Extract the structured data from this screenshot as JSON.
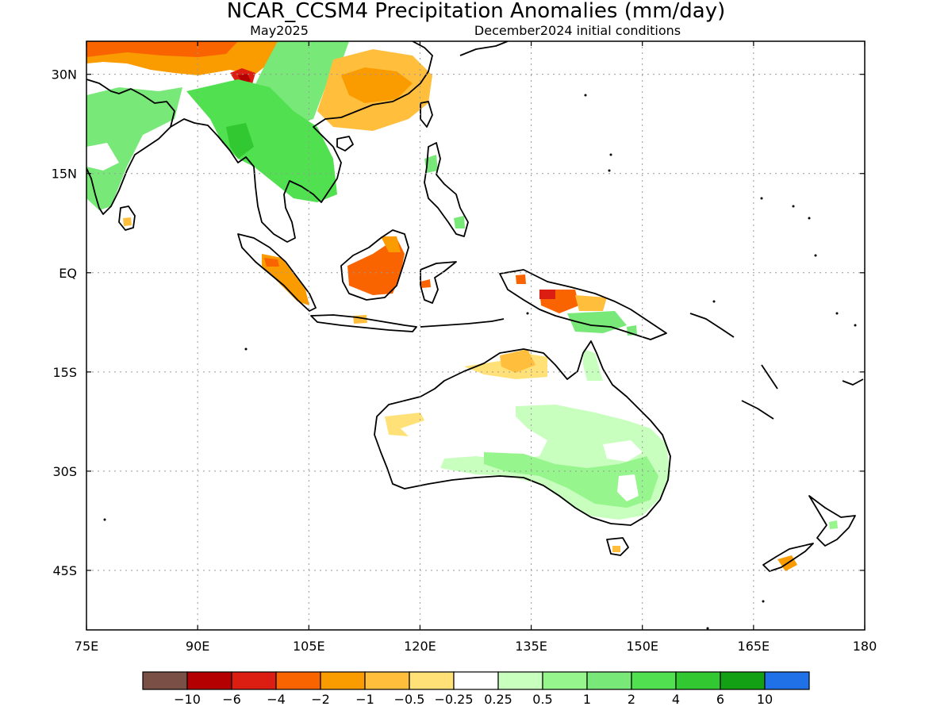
{
  "header": {
    "title": "NCAR_CCSM4 Precipitation Anomalies (mm/day)",
    "subtitle_left": "May2025",
    "subtitle_right": "December2024 initial conditions"
  },
  "map": {
    "lon_range": [
      75,
      180
    ],
    "lat_range": [
      -54,
      35
    ],
    "lon_ticks": [
      {
        "value": 75,
        "label": "75E"
      },
      {
        "value": 90,
        "label": "90E"
      },
      {
        "value": 105,
        "label": "105E"
      },
      {
        "value": 120,
        "label": "120E"
      },
      {
        "value": 135,
        "label": "135E"
      },
      {
        "value": 150,
        "label": "150E"
      },
      {
        "value": 165,
        "label": "165E"
      },
      {
        "value": 180,
        "label": "180"
      }
    ],
    "lat_ticks": [
      {
        "value": 30,
        "label": "30N"
      },
      {
        "value": 15,
        "label": "15N"
      },
      {
        "value": 0,
        "label": "EQ"
      },
      {
        "value": -15,
        "label": "15S"
      },
      {
        "value": -30,
        "label": "30S"
      },
      {
        "value": -45,
        "label": "45S"
      }
    ],
    "grid": "dotted"
  },
  "colorbar": {
    "colors": [
      "#7a5046",
      "#b40000",
      "#dc1e12",
      "#fa6400",
      "#fa9b00",
      "#ffbe3c",
      "#ffe178",
      "#ffffff",
      "#c8ffbe",
      "#96f58c",
      "#78e878",
      "#50e050",
      "#32c832",
      "#14a014",
      "#2070e8"
    ],
    "labels": [
      "−10",
      "−6",
      "−4",
      "−2",
      "−1",
      "−0.5",
      "−0.25",
      "0.25",
      "0.5",
      "1",
      "2",
      "4",
      "6",
      "10"
    ]
  },
  "chart_data": {
    "type": "heatmap",
    "title": "NCAR_CCSM4 Precipitation Anomalies (mm/day)",
    "xlim": [
      75,
      180
    ],
    "ylim": [
      -54,
      35
    ],
    "anomaly_regions": [
      {
        "lon": [
          75,
          98
        ],
        "lat": [
          25,
          35
        ],
        "anomaly_mm_day": -2
      },
      {
        "lon": [
          94,
          98
        ],
        "lat": [
          27,
          30
        ],
        "anomaly_mm_day": -6
      },
      {
        "lon": [
          95,
          104
        ],
        "lat": [
          25,
          35
        ],
        "anomaly_mm_day": 1
      },
      {
        "lon": [
          75,
          90
        ],
        "lat": [
          10,
          25
        ],
        "anomaly_mm_day": 1
      },
      {
        "lon": [
          93,
          110
        ],
        "lat": [
          10,
          25
        ],
        "anomaly_mm_day": 2
      },
      {
        "lon": [
          107,
          121
        ],
        "lat": [
          22,
          32
        ],
        "anomaly_mm_day": -0.5
      },
      {
        "lon": [
          101,
          107
        ],
        "lat": [
          -6,
          1
        ],
        "anomaly_mm_day": -1
      },
      {
        "lon": [
          111,
          119
        ],
        "lat": [
          -3,
          3
        ],
        "anomaly_mm_day": -2
      },
      {
        "lon": [
          137,
          143
        ],
        "lat": [
          -5,
          -3
        ],
        "anomaly_mm_day": -2
      },
      {
        "lon": [
          138,
          146
        ],
        "lat": [
          -9,
          -5
        ],
        "anomaly_mm_day": 1
      },
      {
        "lon": [
          129,
          140
        ],
        "lat": [
          -17,
          -12
        ],
        "anomaly_mm_day": -0.5
      },
      {
        "lon": [
          112,
          118
        ],
        "lat": [
          -25,
          -21
        ],
        "anomaly_mm_day": -0.25
      },
      {
        "lon": [
          125,
          153
        ],
        "lat": [
          -38,
          -20
        ],
        "anomaly_mm_day": 0.5
      },
      {
        "lon": [
          140,
          152
        ],
        "lat": [
          -38,
          -30
        ],
        "anomaly_mm_day": 1
      },
      {
        "lon": [
          167,
          170
        ],
        "lat": [
          -46,
          -44
        ],
        "anomaly_mm_day": -1
      }
    ]
  }
}
